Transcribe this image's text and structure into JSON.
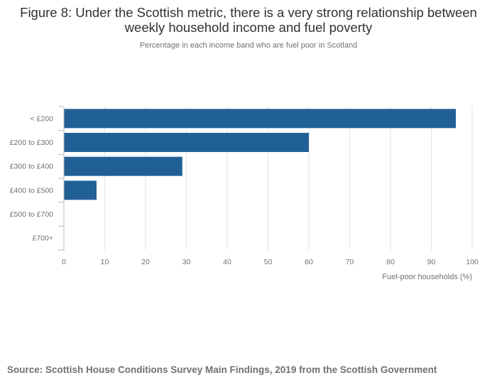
{
  "title": "Figure 8: Under the Scottish metric, there is a very strong relationship between weekly household income and fuel poverty",
  "subtitle": "Percentage in each income band who are fuel poor in Scotland",
  "source": {
    "label": "Source: ",
    "text": "Scottish House Conditions Survey Main Findings, 2019 from the Scottish Government"
  },
  "colors": {
    "bar": "#206095",
    "grid": "#e2e2e3",
    "axis": "#bcbcbd",
    "tick_text": "#707071"
  },
  "chart_data": {
    "type": "bar",
    "orientation": "horizontal",
    "title": "Figure 8: Under the Scottish metric, there is a very strong relationship between weekly household income and fuel poverty",
    "subtitle": "Percentage in each income band who are fuel poor in Scotland",
    "categories": [
      "< £200",
      "£200 to £300",
      "£300 to £400",
      "£400 to £500",
      "£500 to £700",
      "£700+"
    ],
    "values": [
      96,
      60,
      29,
      8,
      0,
      0
    ],
    "xlabel": "Fuel-poor households (%)",
    "ylabel": "",
    "xlim": [
      0,
      100
    ],
    "xticks": [
      0,
      10,
      20,
      30,
      40,
      50,
      60,
      70,
      80,
      90,
      100
    ],
    "grid": true,
    "legend": "none"
  }
}
